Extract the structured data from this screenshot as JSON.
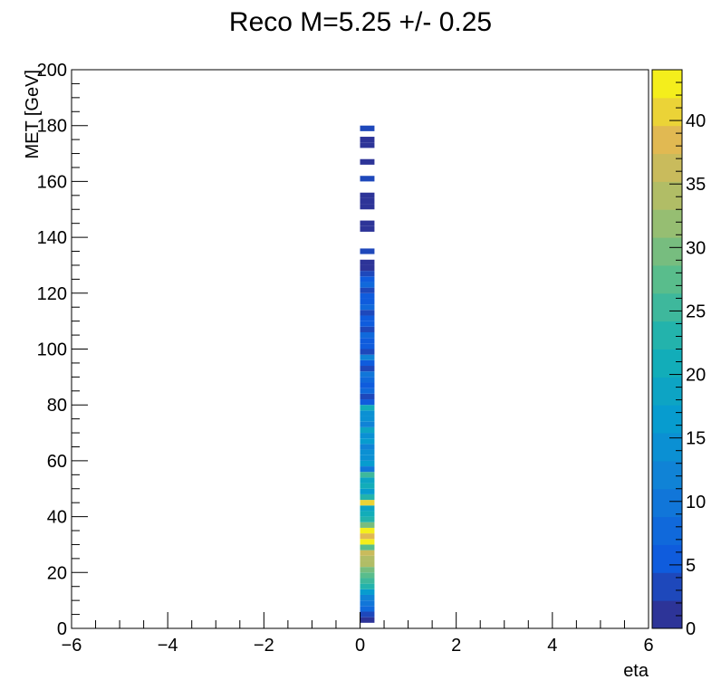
{
  "chart_data": {
    "type": "heatmap",
    "title": "Reco M=5.25 +/- 0.25",
    "xlabel": "eta",
    "ylabel": "MET [GeV]",
    "xlim": [
      -6,
      6
    ],
    "ylim": [
      0,
      200
    ],
    "zlim": [
      0,
      44
    ],
    "x_ticks": [
      "−6",
      "−4",
      "−2",
      "0",
      "2",
      "4",
      "6"
    ],
    "y_ticks": [
      "0",
      "20",
      "40",
      "60",
      "80",
      "100",
      "120",
      "140",
      "160",
      "180",
      "200"
    ],
    "z_ticks": [
      "0",
      "5",
      "10",
      "15",
      "20",
      "25",
      "30",
      "35",
      "40"
    ],
    "colormap": "ROOT Parula (kBird)",
    "bin_x": [
      0.0,
      0.3
    ],
    "bin_width_y": 2,
    "cells": [
      {
        "y": 2,
        "z": 1
      },
      {
        "y": 4,
        "z": 4
      },
      {
        "y": 6,
        "z": 8
      },
      {
        "y": 8,
        "z": 9
      },
      {
        "y": 10,
        "z": 11
      },
      {
        "y": 12,
        "z": 16
      },
      {
        "y": 14,
        "z": 22
      },
      {
        "y": 16,
        "z": 26
      },
      {
        "y": 18,
        "z": 28
      },
      {
        "y": 20,
        "z": 30
      },
      {
        "y": 22,
        "z": 35
      },
      {
        "y": 24,
        "z": 34
      },
      {
        "y": 26,
        "z": 37
      },
      {
        "y": 28,
        "z": 27
      },
      {
        "y": 30,
        "z": 44
      },
      {
        "y": 32,
        "z": 38
      },
      {
        "y": 34,
        "z": 42
      },
      {
        "y": 36,
        "z": 30
      },
      {
        "y": 38,
        "z": 24
      },
      {
        "y": 40,
        "z": 20
      },
      {
        "y": 42,
        "z": 18
      },
      {
        "y": 44,
        "z": 40
      },
      {
        "y": 46,
        "z": 24
      },
      {
        "y": 48,
        "z": 16
      },
      {
        "y": 50,
        "z": 20
      },
      {
        "y": 52,
        "z": 18
      },
      {
        "y": 54,
        "z": 26
      },
      {
        "y": 56,
        "z": 10
      },
      {
        "y": 58,
        "z": 16
      },
      {
        "y": 60,
        "z": 14
      },
      {
        "y": 62,
        "z": 15
      },
      {
        "y": 64,
        "z": 12
      },
      {
        "y": 66,
        "z": 16
      },
      {
        "y": 68,
        "z": 14
      },
      {
        "y": 70,
        "z": 18
      },
      {
        "y": 72,
        "z": 12
      },
      {
        "y": 74,
        "z": 15
      },
      {
        "y": 76,
        "z": 14
      },
      {
        "y": 78,
        "z": 20
      },
      {
        "y": 80,
        "z": 6
      },
      {
        "y": 82,
        "z": 4
      },
      {
        "y": 84,
        "z": 8
      },
      {
        "y": 86,
        "z": 5
      },
      {
        "y": 88,
        "z": 7
      },
      {
        "y": 90,
        "z": 10
      },
      {
        "y": 92,
        "z": 4
      },
      {
        "y": 94,
        "z": 6
      },
      {
        "y": 96,
        "z": 12
      },
      {
        "y": 98,
        "z": 4
      },
      {
        "y": 100,
        "z": 6
      },
      {
        "y": 102,
        "z": 5
      },
      {
        "y": 104,
        "z": 7
      },
      {
        "y": 106,
        "z": 4
      },
      {
        "y": 108,
        "z": 5
      },
      {
        "y": 110,
        "z": 6
      },
      {
        "y": 112,
        "z": 4
      },
      {
        "y": 114,
        "z": 7
      },
      {
        "y": 116,
        "z": 5
      },
      {
        "y": 118,
        "z": 6
      },
      {
        "y": 120,
        "z": 4
      },
      {
        "y": 122,
        "z": 7
      },
      {
        "y": 124,
        "z": 5
      },
      {
        "y": 126,
        "z": 4
      },
      {
        "y": 128,
        "z": 2
      },
      {
        "y": 130,
        "z": 1
      },
      {
        "y": 134,
        "z": 4
      },
      {
        "y": 142,
        "z": 1
      },
      {
        "y": 144,
        "z": 1
      },
      {
        "y": 150,
        "z": 1
      },
      {
        "y": 152,
        "z": 1
      },
      {
        "y": 154,
        "z": 2
      },
      {
        "y": 160,
        "z": 4
      },
      {
        "y": 166,
        "z": 1
      },
      {
        "y": 172,
        "z": 1
      },
      {
        "y": 174,
        "z": 1
      },
      {
        "y": 178,
        "z": 4
      }
    ]
  }
}
